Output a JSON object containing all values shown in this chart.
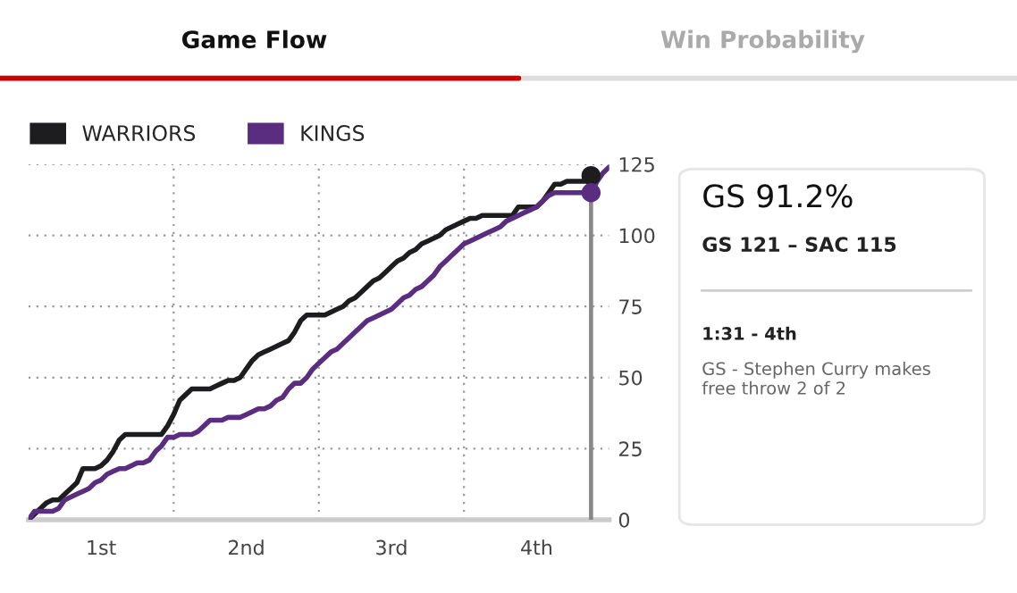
{
  "chart_data": {
    "type": "line",
    "categories": [
      null,
      null,
      null,
      null,
      null,
      null,
      null,
      null,
      null,
      null,
      null,
      null,
      "1st",
      null,
      null,
      null,
      null,
      null,
      null,
      null,
      null,
      null,
      null,
      null,
      null,
      null,
      null,
      null,
      null,
      null,
      null,
      null,
      null,
      null,
      null,
      null,
      "2nd",
      null,
      null,
      null,
      null,
      null,
      null,
      null,
      null,
      null,
      null,
      null,
      null,
      null,
      null,
      null,
      null,
      null,
      null,
      null,
      null,
      null,
      null,
      null,
      "3rd",
      null,
      null,
      null,
      null,
      null,
      null,
      null,
      null,
      null,
      null,
      null,
      null,
      null,
      null,
      null,
      null,
      null,
      null,
      null,
      null,
      null,
      null,
      null,
      "4th",
      null,
      null,
      null,
      null,
      null,
      null,
      null,
      null,
      null,
      null,
      null,
      null
    ],
    "series": [
      {
        "name": "WARRIORS",
        "color": "#1d1d1f",
        "values": [
          0,
          2,
          4,
          6,
          7,
          7,
          9,
          11,
          13,
          18,
          18,
          18,
          19,
          21,
          24,
          28,
          30,
          30,
          30,
          30,
          30,
          30,
          30,
          33,
          37,
          42,
          44,
          46,
          46,
          46,
          46,
          47,
          48,
          49,
          49,
          50,
          53,
          56,
          58,
          59,
          60,
          61,
          62,
          63,
          66,
          70,
          72,
          72,
          72,
          72,
          73,
          74,
          75,
          77,
          78,
          80,
          82,
          84,
          85,
          87,
          89,
          91,
          92,
          94,
          95,
          97,
          98,
          99,
          100,
          102,
          103,
          104,
          105,
          106,
          106,
          107,
          107,
          107,
          107,
          107,
          107,
          110,
          110,
          110,
          110,
          112,
          115,
          118,
          118,
          119,
          119,
          119,
          119,
          121,
          null,
          null,
          null
        ]
      },
      {
        "name": "KINGS",
        "color": "#5a2d81",
        "values": [
          0,
          3,
          3,
          3,
          3,
          4,
          7,
          8,
          9,
          10,
          11,
          13,
          14,
          16,
          17,
          18,
          18,
          19,
          20,
          20,
          21,
          24,
          26,
          29,
          29,
          30,
          30,
          30,
          31,
          33,
          35,
          35,
          35,
          36,
          36,
          36,
          37,
          38,
          39,
          39,
          40,
          42,
          43,
          46,
          48,
          48,
          50,
          53,
          55,
          57,
          59,
          60,
          62,
          64,
          66,
          68,
          70,
          71,
          72,
          73,
          74,
          76,
          78,
          79,
          81,
          82,
          84,
          86,
          89,
          91,
          93,
          95,
          97,
          98,
          99,
          100,
          101,
          102,
          103,
          105,
          106,
          107,
          108,
          109,
          110,
          112,
          114,
          115,
          115,
          115,
          115,
          115,
          115,
          115,
          119,
          122,
          124
        ]
      },
      {
        "type": "scatter",
        "color": "#1d1d1f",
        "values": [
          null,
          null,
          null,
          null,
          null,
          null,
          null,
          null,
          null,
          null,
          null,
          null,
          null,
          null,
          null,
          null,
          null,
          null,
          null,
          null,
          null,
          null,
          null,
          null,
          null,
          null,
          null,
          null,
          null,
          null,
          null,
          null,
          null,
          null,
          null,
          null,
          null,
          null,
          null,
          null,
          null,
          null,
          null,
          null,
          null,
          null,
          null,
          null,
          null,
          null,
          null,
          null,
          null,
          null,
          null,
          null,
          null,
          null,
          null,
          null,
          null,
          null,
          null,
          null,
          null,
          null,
          null,
          null,
          null,
          null,
          null,
          null,
          null,
          null,
          null,
          null,
          null,
          null,
          null,
          null,
          null,
          null,
          null,
          null,
          null,
          null,
          null,
          null,
          null,
          null,
          null,
          null,
          null,
          121,
          null,
          null,
          null
        ]
      },
      {
        "type": "scatter",
        "color": "#5a2d81",
        "values": [
          null,
          null,
          null,
          null,
          null,
          null,
          null,
          null,
          null,
          null,
          null,
          null,
          null,
          null,
          null,
          null,
          null,
          null,
          null,
          null,
          null,
          null,
          null,
          null,
          null,
          null,
          null,
          null,
          null,
          null,
          null,
          null,
          null,
          null,
          null,
          null,
          null,
          null,
          null,
          null,
          null,
          null,
          null,
          null,
          null,
          null,
          null,
          null,
          null,
          null,
          null,
          null,
          null,
          null,
          null,
          null,
          null,
          null,
          null,
          null,
          null,
          null,
          null,
          null,
          null,
          null,
          null,
          null,
          null,
          null,
          null,
          null,
          null,
          null,
          null,
          null,
          null,
          null,
          null,
          null,
          null,
          null,
          null,
          null,
          null,
          null,
          null,
          null,
          null,
          null,
          null,
          null,
          null,
          115,
          null,
          null,
          null
        ]
      }
    ],
    "ylim": [
      0,
      125
    ],
    "yticks": [
      0,
      25,
      50,
      75,
      100,
      125
    ],
    "grid": "y",
    "legend": "top left",
    "annotations": [
      "Game Flow",
      "Win Probability",
      "GS 91.2%",
      "GS 121 – SAC 115",
      "1:31 - 4th",
      "GS - Stephen Curry makes free throw 2 of 2"
    ]
  }
}
